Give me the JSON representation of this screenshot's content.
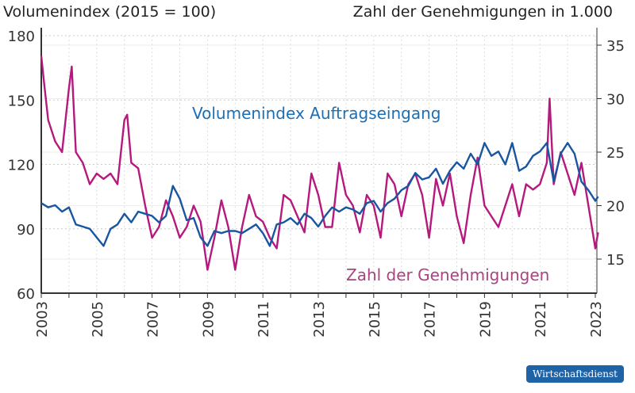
{
  "chart_data": {
    "type": "line",
    "left_axis_label": "Volumenindex (2015 = 100)",
    "right_axis_label": "Zahl der Genehmigungen in 1.000",
    "left_ylim": [
      60,
      180
    ],
    "left_ticks": [
      "60",
      "90",
      "120",
      "150",
      "180"
    ],
    "right_ylim": [
      12.5,
      37.5
    ],
    "right_ticks": [
      "15",
      "20",
      "25",
      "30",
      "35"
    ],
    "xlim": [
      2003,
      2023.2
    ],
    "x_ticks": [
      "2003",
      "2005",
      "2007",
      "2009",
      "2011",
      "2013",
      "2015",
      "2017",
      "2019",
      "2021",
      "2023"
    ],
    "grid": true,
    "series": [
      {
        "name": "Volumenindex Auftragseingang",
        "axis": "left",
        "color": "#1a56a0",
        "x": [
          2003,
          2003.25,
          2003.5,
          2003.75,
          2004,
          2004.25,
          2004.5,
          2004.75,
          2005,
          2005.25,
          2005.5,
          2005.75,
          2006,
          2006.25,
          2006.5,
          2006.75,
          2007,
          2007.25,
          2007.5,
          2007.75,
          2008,
          2008.25,
          2008.5,
          2008.75,
          2009,
          2009.25,
          2009.5,
          2009.75,
          2010,
          2010.25,
          2010.5,
          2010.75,
          2011,
          2011.25,
          2011.5,
          2011.75,
          2012,
          2012.25,
          2012.5,
          2012.75,
          2013,
          2013.25,
          2013.5,
          2013.75,
          2014,
          2014.25,
          2014.5,
          2014.75,
          2015,
          2015.25,
          2015.5,
          2015.75,
          2016,
          2016.25,
          2016.5,
          2016.75,
          2017,
          2017.25,
          2017.5,
          2017.75,
          2018,
          2018.25,
          2018.5,
          2018.75,
          2019,
          2019.25,
          2019.5,
          2019.75,
          2020,
          2020.25,
          2020.5,
          2020.75,
          2021,
          2021.25,
          2021.5,
          2021.75,
          2022,
          2022.25,
          2022.5,
          2022.75,
          2023,
          2023.1
        ],
        "values": [
          102,
          100,
          101,
          98,
          100,
          92,
          91,
          90,
          86,
          82,
          90,
          92,
          97,
          93,
          98,
          97,
          96,
          93,
          96,
          110,
          104,
          94,
          95,
          86,
          82,
          89,
          88,
          89,
          89,
          88,
          90,
          92,
          88,
          82,
          92,
          93,
          95,
          92,
          97,
          95,
          91,
          96,
          100,
          98,
          100,
          99,
          97,
          102,
          103,
          98,
          102,
          104,
          108,
          110,
          116,
          113,
          114,
          118,
          111,
          117,
          121,
          118,
          125,
          120,
          130,
          124,
          126,
          120,
          130,
          117,
          119,
          124,
          126,
          130,
          112,
          125,
          130,
          125,
          112,
          108,
          103,
          105
        ]
      },
      {
        "name": "Zahl der Genehmigungen",
        "axis": "right",
        "color": "#b5197e",
        "x": [
          2003,
          2003.1,
          2003.25,
          2003.5,
          2003.75,
          2004,
          2004.1,
          2004.25,
          2004.5,
          2004.75,
          2005,
          2005.25,
          2005.5,
          2005.75,
          2006,
          2006.1,
          2006.25,
          2006.5,
          2006.75,
          2007,
          2007.25,
          2007.5,
          2007.75,
          2008,
          2008.25,
          2008.5,
          2008.75,
          2009,
          2009.25,
          2009.5,
          2009.75,
          2010,
          2010.25,
          2010.5,
          2010.75,
          2011,
          2011.25,
          2011.5,
          2011.75,
          2012,
          2012.25,
          2012.5,
          2012.75,
          2013,
          2013.25,
          2013.5,
          2013.75,
          2014,
          2014.25,
          2014.5,
          2014.75,
          2015,
          2015.25,
          2015.5,
          2015.75,
          2016,
          2016.25,
          2016.5,
          2016.75,
          2017,
          2017.25,
          2017.5,
          2017.75,
          2018,
          2018.25,
          2018.5,
          2018.75,
          2019,
          2019.25,
          2019.5,
          2019.75,
          2020,
          2020.25,
          2020.5,
          2020.75,
          2021,
          2021.25,
          2021.35,
          2021.5,
          2021.75,
          2022,
          2022.25,
          2022.5,
          2022.75,
          2023,
          2023.1
        ],
        "values": [
          34,
          31.5,
          28,
          26,
          25,
          31,
          33,
          25,
          24,
          22,
          23,
          22.5,
          23,
          22,
          28,
          28.5,
          24,
          23.5,
          20,
          17,
          18,
          20.5,
          19,
          17,
          18,
          20,
          18.5,
          14,
          17,
          20.5,
          18,
          14,
          18,
          21,
          19,
          18.5,
          17,
          16,
          21,
          20.5,
          19,
          17.5,
          23,
          21,
          18,
          18,
          24,
          21,
          20,
          17.5,
          21,
          20,
          17,
          23,
          22,
          19,
          22,
          23,
          21,
          17,
          22.5,
          20,
          23,
          19,
          16.5,
          21,
          24.5,
          20,
          19,
          18,
          20,
          22,
          19,
          22,
          21.5,
          22,
          24,
          30,
          22,
          25,
          23,
          21,
          24,
          20,
          16,
          17.5
        ]
      }
    ]
  },
  "footer": {
    "badge": "Wirtschaftsdienst"
  }
}
